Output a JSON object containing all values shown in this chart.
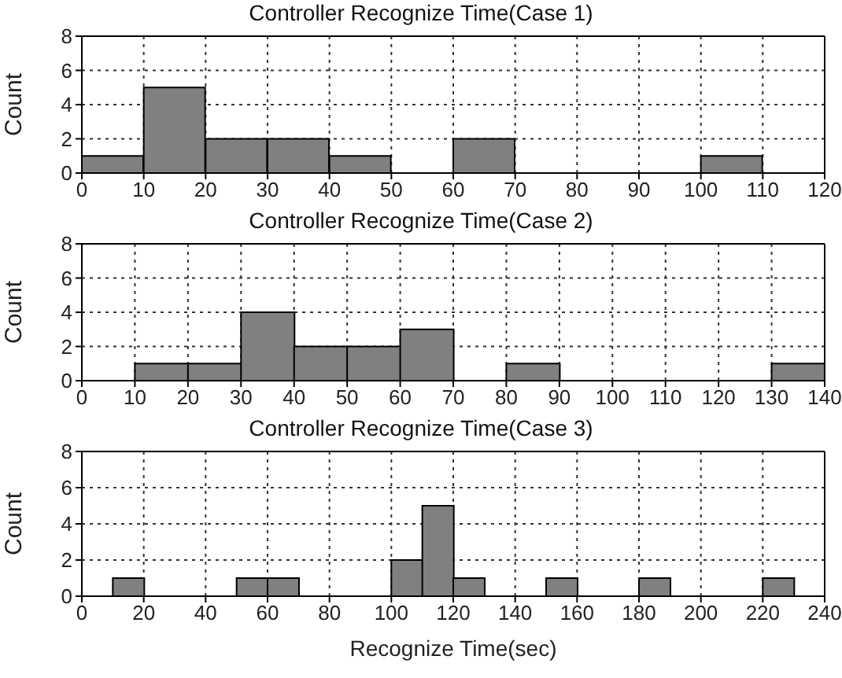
{
  "chart_data": [
    {
      "type": "histogram",
      "title": "Controller Recognize Time(Case 1)",
      "ylabel": "Count",
      "bins": [
        0,
        10,
        20,
        30,
        40,
        50,
        60,
        70,
        80,
        90,
        100,
        110,
        120
      ],
      "values": [
        1,
        5,
        2,
        2,
        1,
        0,
        2,
        0,
        0,
        0,
        1,
        0
      ],
      "color": "#808080",
      "xlim": [
        0,
        120
      ],
      "xticks": [
        0,
        10,
        20,
        30,
        40,
        50,
        60,
        70,
        80,
        90,
        100,
        110,
        120
      ],
      "ylim": [
        0,
        8
      ],
      "yticks": [
        0,
        2,
        4,
        6,
        8
      ],
      "grid": true
    },
    {
      "type": "histogram",
      "title": "Controller Recognize Time(Case 2)",
      "ylabel": "Count",
      "bins": [
        0,
        10,
        20,
        30,
        40,
        50,
        60,
        70,
        80,
        90,
        100,
        110,
        120,
        130,
        140
      ],
      "values": [
        0,
        1,
        1,
        4,
        2,
        2,
        3,
        0,
        1,
        0,
        0,
        0,
        0,
        1
      ],
      "color": "#808080",
      "xlim": [
        0,
        140
      ],
      "xticks": [
        0,
        10,
        20,
        30,
        40,
        50,
        60,
        70,
        80,
        90,
        100,
        110,
        120,
        130,
        140
      ],
      "ylim": [
        0,
        8
      ],
      "yticks": [
        0,
        2,
        4,
        6,
        8
      ],
      "grid": true
    },
    {
      "type": "histogram",
      "title": "Controller Recognize Time(Case 3)",
      "xlabel": "Recognize Time(sec)",
      "ylabel": "Count",
      "bins": [
        0,
        10,
        20,
        30,
        40,
        50,
        60,
        70,
        80,
        90,
        100,
        110,
        120,
        130,
        140,
        150,
        160,
        170,
        180,
        190,
        200,
        210,
        220,
        230,
        240
      ],
      "values": [
        0,
        1,
        0,
        0,
        0,
        1,
        1,
        0,
        0,
        0,
        2,
        5,
        1,
        0,
        0,
        1,
        0,
        0,
        1,
        0,
        0,
        0,
        1,
        0
      ],
      "color": "#808080",
      "xlim": [
        0,
        240
      ],
      "xticks": [
        0,
        20,
        40,
        60,
        80,
        100,
        120,
        140,
        160,
        180,
        200,
        220,
        240
      ],
      "ylim": [
        0,
        8
      ],
      "yticks": [
        0,
        2,
        4,
        6,
        8
      ],
      "grid": true
    }
  ]
}
